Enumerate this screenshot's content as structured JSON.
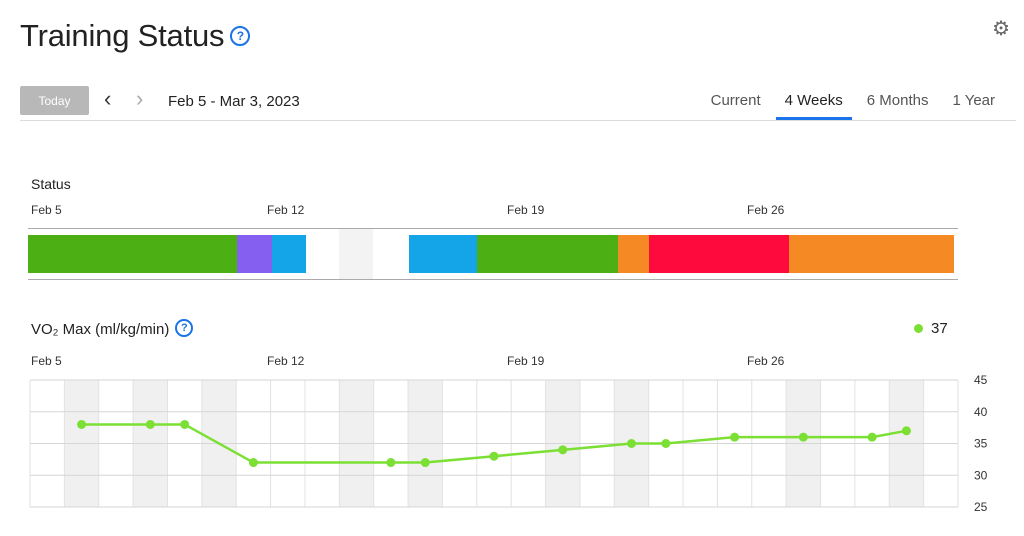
{
  "header": {
    "title": "Training Status",
    "help_glyph": "?"
  },
  "toolbar": {
    "today_label": "Today",
    "prev_glyph": "‹",
    "next_glyph": "›",
    "date_range": "Feb 5 - Mar 3, 2023"
  },
  "tabs": [
    {
      "label": "Current"
    },
    {
      "label": "4 Weeks",
      "active": true
    },
    {
      "label": "6 Months"
    },
    {
      "label": "1 Year"
    }
  ],
  "status": {
    "label": "Status",
    "ticks": [
      "Feb 5",
      "Feb 12",
      "Feb 19",
      "Feb 26"
    ],
    "segments": [
      {
        "start": 0,
        "end": 6.1,
        "color": "#4caf14"
      },
      {
        "start": 6.1,
        "end": 7.1,
        "color": "#8560f0"
      },
      {
        "start": 7.1,
        "end": 8.1,
        "color": "#14a4e8"
      },
      {
        "start": 11.1,
        "end": 13.1,
        "color": "#14a4e8"
      },
      {
        "start": 13.1,
        "end": 17.2,
        "color": "#4caf14"
      },
      {
        "start": 17.2,
        "end": 18.1,
        "color": "#f58a24"
      },
      {
        "start": 18.1,
        "end": 22.2,
        "color": "#ff0a3c"
      },
      {
        "start": 22.2,
        "end": 27.0,
        "color": "#f58a24"
      }
    ]
  },
  "vo2": {
    "label": "VO₂ Max (ml/kg/min)",
    "help_glyph": "?",
    "current_value": "37",
    "color": "#7bdf34"
  },
  "chart_data": {
    "type": "line",
    "x_ticks": [
      "Feb 5",
      "Feb 12",
      "Feb 19",
      "Feb 26"
    ],
    "y_ticks": [
      "45",
      "40",
      "35",
      "30",
      "25"
    ],
    "ylim": [
      25,
      45
    ],
    "points": [
      {
        "day": 1,
        "value": 38
      },
      {
        "day": 3,
        "value": 38
      },
      {
        "day": 4,
        "value": 38
      },
      {
        "day": 6,
        "value": 32
      },
      {
        "day": 10,
        "value": 32
      },
      {
        "day": 11,
        "value": 32
      },
      {
        "day": 13,
        "value": 33
      },
      {
        "day": 15,
        "value": 34
      },
      {
        "day": 17,
        "value": 35
      },
      {
        "day": 18,
        "value": 35
      },
      {
        "day": 20,
        "value": 36
      },
      {
        "day": 22,
        "value": 36
      },
      {
        "day": 24,
        "value": 36
      },
      {
        "day": 25,
        "value": 37
      }
    ],
    "shaded_days": [
      1,
      3,
      5,
      9,
      11,
      15,
      17,
      22,
      25
    ]
  }
}
